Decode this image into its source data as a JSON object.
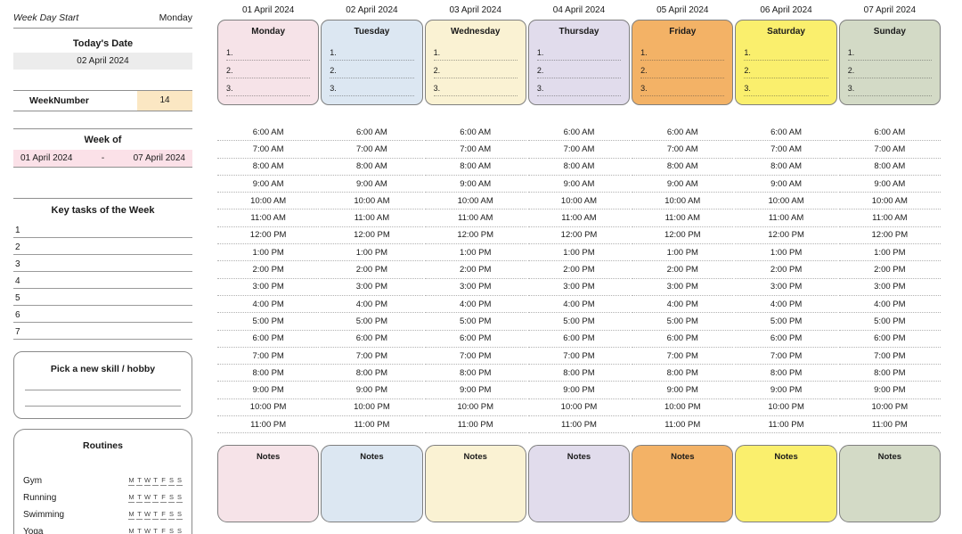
{
  "sidebar": {
    "week_day_start": {
      "label": "Week Day Start",
      "value": "Monday"
    },
    "todays_date": {
      "label": "Today's Date",
      "value": "02 April 2024"
    },
    "week_number": {
      "label": "WeekNumber",
      "value": "14"
    },
    "week_of": {
      "label": "Week of",
      "start": "01 April 2024",
      "separator": "-",
      "end": "07 April 2024"
    },
    "key_tasks": {
      "label": "Key tasks of the Week",
      "numbers": [
        "1",
        "2",
        "3",
        "4",
        "5",
        "6",
        "7"
      ]
    },
    "skill_box": {
      "label": "Pick a new skill / hobby",
      "blank_lines": 2
    },
    "routines": {
      "label": "Routines",
      "items": [
        "Gym",
        "Running",
        "Swimming",
        "Yoga"
      ],
      "day_letters": [
        "M",
        "T",
        "W",
        "T",
        "F",
        "S",
        "S"
      ]
    }
  },
  "planner": {
    "notes_label": "Notes",
    "card_item_numbers": [
      "1.",
      "2.",
      "3."
    ],
    "times": [
      "6:00 AM",
      "7:00 AM",
      "8:00 AM",
      "9:00 AM",
      "10:00 AM",
      "11:00 AM",
      "12:00 PM",
      "1:00 PM",
      "2:00 PM",
      "3:00 PM",
      "4:00 PM",
      "5:00 PM",
      "6:00 PM",
      "7:00 PM",
      "8:00 PM",
      "9:00 PM",
      "10:00 PM",
      "11:00 PM"
    ],
    "days": [
      {
        "date": "01 April 2024",
        "name": "Monday",
        "color": "#f6e3e8"
      },
      {
        "date": "02 April 2024",
        "name": "Tuesday",
        "color": "#dce7f2"
      },
      {
        "date": "03 April 2024",
        "name": "Wednesday",
        "color": "#faf2d3"
      },
      {
        "date": "04 April 2024",
        "name": "Thursday",
        "color": "#e1dcec"
      },
      {
        "date": "05 April 2024",
        "name": "Friday",
        "color": "#f3b266"
      },
      {
        "date": "06 April 2024",
        "name": "Saturday",
        "color": "#faef6d"
      },
      {
        "date": "07 April 2024",
        "name": "Sunday",
        "color": "#d3dac6"
      }
    ]
  }
}
